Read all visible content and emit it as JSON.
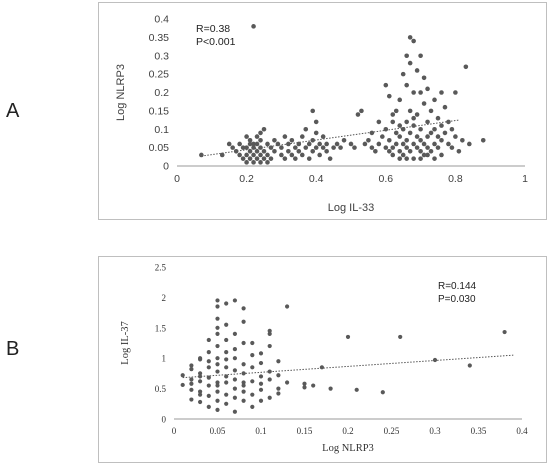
{
  "panels": {
    "a_letter": "A",
    "b_letter": "B"
  },
  "chart_data": [
    {
      "type": "scatter",
      "xlabel": "Log IL-33",
      "ylabel": "Log NLRP3",
      "xlim": [
        0,
        1
      ],
      "ylim": [
        0,
        0.4
      ],
      "xticks": [
        "0",
        "0.2",
        "0.4",
        "0.6",
        "0.8",
        "1"
      ],
      "yticks": [
        "0",
        "0.05",
        "0.1",
        "0.15",
        "0.2",
        "0.25",
        "0.3",
        "0.35",
        "0.4"
      ],
      "stat_r": "R=0.38",
      "stat_p": "P<0.001",
      "trendline": [
        [
          0.07,
          0.027
        ],
        [
          0.81,
          0.125
        ]
      ],
      "grid": false,
      "points": [
        [
          0.07,
          0.03
        ],
        [
          0.13,
          0.03
        ],
        [
          0.15,
          0.06
        ],
        [
          0.16,
          0.05
        ],
        [
          0.17,
          0.04
        ],
        [
          0.18,
          0.06
        ],
        [
          0.18,
          0.03
        ],
        [
          0.19,
          0.05
        ],
        [
          0.19,
          0.02
        ],
        [
          0.2,
          0.08
        ],
        [
          0.2,
          0.05
        ],
        [
          0.2,
          0.03
        ],
        [
          0.2,
          0.01
        ],
        [
          0.21,
          0.07
        ],
        [
          0.21,
          0.04
        ],
        [
          0.21,
          0.06
        ],
        [
          0.21,
          0.02
        ],
        [
          0.22,
          0.38
        ],
        [
          0.22,
          0.06
        ],
        [
          0.22,
          0.03
        ],
        [
          0.22,
          0.05
        ],
        [
          0.22,
          0.01
        ],
        [
          0.23,
          0.08
        ],
        [
          0.23,
          0.04
        ],
        [
          0.23,
          0.02
        ],
        [
          0.23,
          0.06
        ],
        [
          0.24,
          0.09
        ],
        [
          0.24,
          0.05
        ],
        [
          0.24,
          0.03
        ],
        [
          0.24,
          0.01
        ],
        [
          0.24,
          0.07
        ],
        [
          0.25,
          0.04
        ],
        [
          0.25,
          0.02
        ],
        [
          0.25,
          0.1
        ],
        [
          0.26,
          0.06
        ],
        [
          0.26,
          0.03
        ],
        [
          0.26,
          0.01
        ],
        [
          0.27,
          0.05
        ],
        [
          0.27,
          0.02
        ],
        [
          0.28,
          0.04
        ],
        [
          0.28,
          0.07
        ],
        [
          0.29,
          0.06
        ],
        [
          0.3,
          0.03
        ],
        [
          0.3,
          0.05
        ],
        [
          0.31,
          0.08
        ],
        [
          0.31,
          0.02
        ],
        [
          0.32,
          0.04
        ],
        [
          0.32,
          0.06
        ],
        [
          0.33,
          0.07
        ],
        [
          0.33,
          0.03
        ],
        [
          0.34,
          0.05
        ],
        [
          0.34,
          0.02
        ],
        [
          0.35,
          0.04
        ],
        [
          0.35,
          0.06
        ],
        [
          0.36,
          0.08
        ],
        [
          0.36,
          0.03
        ],
        [
          0.37,
          0.05
        ],
        [
          0.37,
          0.1
        ],
        [
          0.38,
          0.06
        ],
        [
          0.38,
          0.02
        ],
        [
          0.39,
          0.15
        ],
        [
          0.39,
          0.04
        ],
        [
          0.39,
          0.07
        ],
        [
          0.4,
          0.12
        ],
        [
          0.4,
          0.05
        ],
        [
          0.4,
          0.09
        ],
        [
          0.41,
          0.06
        ],
        [
          0.41,
          0.03
        ],
        [
          0.42,
          0.08
        ],
        [
          0.42,
          0.05
        ],
        [
          0.43,
          0.04
        ],
        [
          0.43,
          0.06
        ],
        [
          0.44,
          0.02
        ],
        [
          0.45,
          0.05
        ],
        [
          0.46,
          0.06
        ],
        [
          0.47,
          0.05
        ],
        [
          0.48,
          0.07
        ],
        [
          0.5,
          0.06
        ],
        [
          0.51,
          0.05
        ],
        [
          0.52,
          0.14
        ],
        [
          0.53,
          0.15
        ],
        [
          0.54,
          0.06
        ],
        [
          0.55,
          0.07
        ],
        [
          0.56,
          0.05
        ],
        [
          0.57,
          0.04
        ],
        [
          0.58,
          0.06
        ],
        [
          0.59,
          0.08
        ],
        [
          0.6,
          0.05
        ],
        [
          0.6,
          0.22
        ],
        [
          0.6,
          0.1
        ],
        [
          0.61,
          0.07
        ],
        [
          0.61,
          0.04
        ],
        [
          0.61,
          0.19
        ],
        [
          0.62,
          0.05
        ],
        [
          0.62,
          0.12
        ],
        [
          0.62,
          0.03
        ],
        [
          0.63,
          0.09
        ],
        [
          0.63,
          0.06
        ],
        [
          0.63,
          0.15
        ],
        [
          0.64,
          0.04
        ],
        [
          0.64,
          0.08
        ],
        [
          0.64,
          0.02
        ],
        [
          0.64,
          0.18
        ],
        [
          0.65,
          0.06
        ],
        [
          0.65,
          0.1
        ],
        [
          0.65,
          0.03
        ],
        [
          0.65,
          0.25
        ],
        [
          0.66,
          0.3
        ],
        [
          0.66,
          0.07
        ],
        [
          0.66,
          0.12
        ],
        [
          0.66,
          0.05
        ],
        [
          0.66,
          0.22
        ],
        [
          0.67,
          0.35
        ],
        [
          0.67,
          0.09
        ],
        [
          0.67,
          0.04
        ],
        [
          0.67,
          0.28
        ],
        [
          0.67,
          0.15
        ],
        [
          0.68,
          0.2
        ],
        [
          0.68,
          0.06
        ],
        [
          0.68,
          0.11
        ],
        [
          0.68,
          0.02
        ],
        [
          0.68,
          0.34
        ],
        [
          0.69,
          0.08
        ],
        [
          0.69,
          0.26
        ],
        [
          0.69,
          0.05
        ],
        [
          0.69,
          0.14
        ],
        [
          0.7,
          0.3
        ],
        [
          0.7,
          0.1
        ],
        [
          0.7,
          0.04
        ],
        [
          0.7,
          0.2
        ],
        [
          0.7,
          0.07
        ],
        [
          0.71,
          0.17
        ],
        [
          0.71,
          0.06
        ],
        [
          0.71,
          0.24
        ],
        [
          0.71,
          0.03
        ],
        [
          0.72,
          0.12
        ],
        [
          0.72,
          0.08
        ],
        [
          0.72,
          0.05
        ],
        [
          0.72,
          0.21
        ],
        [
          0.73,
          0.09
        ],
        [
          0.73,
          0.15
        ],
        [
          0.73,
          0.04
        ],
        [
          0.74,
          0.1
        ],
        [
          0.74,
          0.06
        ],
        [
          0.74,
          0.18
        ],
        [
          0.75,
          0.08
        ],
        [
          0.75,
          0.13
        ],
        [
          0.75,
          0.05
        ],
        [
          0.76,
          0.11
        ],
        [
          0.76,
          0.07
        ],
        [
          0.76,
          0.03
        ],
        [
          0.77,
          0.09
        ],
        [
          0.77,
          0.16
        ],
        [
          0.78,
          0.06
        ],
        [
          0.78,
          0.12
        ],
        [
          0.79,
          0.1
        ],
        [
          0.79,
          0.05
        ],
        [
          0.8,
          0.08
        ],
        [
          0.8,
          0.2
        ],
        [
          0.81,
          0.04
        ],
        [
          0.82,
          0.07
        ],
        [
          0.83,
          0.27
        ],
        [
          0.84,
          0.06
        ],
        [
          0.88,
          0.07
        ],
        [
          0.62,
          0.14
        ],
        [
          0.64,
          0.11
        ],
        [
          0.66,
          0.02
        ],
        [
          0.68,
          0.13
        ],
        [
          0.7,
          0.02
        ],
        [
          0.72,
          0.03
        ],
        [
          0.74,
          0.02
        ],
        [
          0.76,
          0.2
        ],
        [
          0.58,
          0.12
        ],
        [
          0.56,
          0.09
        ]
      ]
    },
    {
      "type": "scatter",
      "xlabel": "Log NLRP3",
      "ylabel": "Log IL-37",
      "xlim": [
        0,
        0.4
      ],
      "ylim": [
        0,
        2.5
      ],
      "xticks": [
        "0",
        "0.05",
        "0.1",
        "0.15",
        "0.2",
        "0.25",
        "0.3",
        "0.35",
        "0.4"
      ],
      "yticks": [
        "0",
        "0.5",
        "1",
        "1.5",
        "2",
        "2.5"
      ],
      "stat_r": "R=0.144",
      "stat_p": "P=0.030",
      "trendline": [
        [
          0.01,
          0.68
        ],
        [
          0.39,
          1.05
        ]
      ],
      "grid": false,
      "points": [
        [
          0.01,
          0.56
        ],
        [
          0.01,
          0.72
        ],
        [
          0.02,
          0.65
        ],
        [
          0.02,
          0.48
        ],
        [
          0.02,
          0.82
        ],
        [
          0.02,
          0.32
        ],
        [
          0.03,
          0.62
        ],
        [
          0.03,
          0.98
        ],
        [
          0.03,
          0.45
        ],
        [
          0.03,
          1.0
        ],
        [
          0.03,
          0.28
        ],
        [
          0.03,
          0.75
        ],
        [
          0.04,
          0.55
        ],
        [
          0.04,
          0.85
        ],
        [
          0.04,
          0.38
        ],
        [
          0.04,
          1.1
        ],
        [
          0.04,
          0.68
        ],
        [
          0.04,
          0.2
        ],
        [
          0.04,
          1.3
        ],
        [
          0.05,
          0.6
        ],
        [
          0.05,
          1.85
        ],
        [
          0.05,
          1.95
        ],
        [
          0.05,
          0.45
        ],
        [
          0.05,
          1.5
        ],
        [
          0.05,
          0.78
        ],
        [
          0.05,
          1.2
        ],
        [
          0.05,
          0.3
        ],
        [
          0.05,
          1.0
        ],
        [
          0.05,
          0.9
        ],
        [
          0.05,
          1.65
        ],
        [
          0.05,
          0.55
        ],
        [
          0.05,
          0.15
        ],
        [
          0.05,
          1.4
        ],
        [
          0.06,
          0.7
        ],
        [
          0.06,
          1.9
        ],
        [
          0.06,
          0.4
        ],
        [
          0.06,
          1.1
        ],
        [
          0.06,
          0.85
        ],
        [
          0.06,
          1.55
        ],
        [
          0.06,
          0.25
        ],
        [
          0.06,
          0.6
        ],
        [
          0.06,
          1.3
        ],
        [
          0.07,
          0.5
        ],
        [
          0.07,
          1.95
        ],
        [
          0.07,
          0.8
        ],
        [
          0.07,
          1.0
        ],
        [
          0.07,
          0.35
        ],
        [
          0.07,
          1.4
        ],
        [
          0.07,
          0.65
        ],
        [
          0.07,
          0.12
        ],
        [
          0.07,
          1.15
        ],
        [
          0.08,
          0.55
        ],
        [
          0.08,
          1.6
        ],
        [
          0.08,
          0.9
        ],
        [
          0.08,
          0.3
        ],
        [
          0.08,
          1.25
        ],
        [
          0.08,
          0.75
        ],
        [
          0.08,
          0.45
        ],
        [
          0.08,
          1.82
        ],
        [
          0.09,
          0.62
        ],
        [
          0.09,
          1.05
        ],
        [
          0.09,
          0.4
        ],
        [
          0.09,
          0.85
        ],
        [
          0.09,
          0.2
        ],
        [
          0.1,
          0.7
        ],
        [
          0.1,
          0.48
        ],
        [
          0.1,
          0.92
        ],
        [
          0.1,
          0.3
        ],
        [
          0.1,
          0.58
        ],
        [
          0.11,
          1.45
        ],
        [
          0.11,
          1.4
        ],
        [
          0.11,
          0.65
        ],
        [
          0.11,
          0.35
        ],
        [
          0.11,
          1.2
        ],
        [
          0.11,
          0.78
        ],
        [
          0.12,
          0.5
        ],
        [
          0.12,
          0.72
        ],
        [
          0.12,
          0.42
        ],
        [
          0.13,
          1.85
        ],
        [
          0.13,
          0.6
        ],
        [
          0.15,
          0.58
        ],
        [
          0.15,
          0.52
        ],
        [
          0.16,
          0.55
        ],
        [
          0.17,
          0.85
        ],
        [
          0.18,
          0.5
        ],
        [
          0.2,
          1.35
        ],
        [
          0.21,
          0.48
        ],
        [
          0.24,
          0.44
        ],
        [
          0.26,
          1.35
        ],
        [
          0.3,
          0.97
        ],
        [
          0.34,
          0.88
        ],
        [
          0.38,
          1.43
        ],
        [
          0.02,
          0.88
        ],
        [
          0.03,
          0.4
        ],
        [
          0.04,
          0.95
        ],
        [
          0.06,
          0.98
        ],
        [
          0.08,
          0.6
        ],
        [
          0.09,
          1.25
        ],
        [
          0.1,
          1.08
        ],
        [
          0.12,
          0.95
        ],
        [
          0.02,
          0.58
        ],
        [
          0.03,
          0.7
        ]
      ]
    }
  ]
}
